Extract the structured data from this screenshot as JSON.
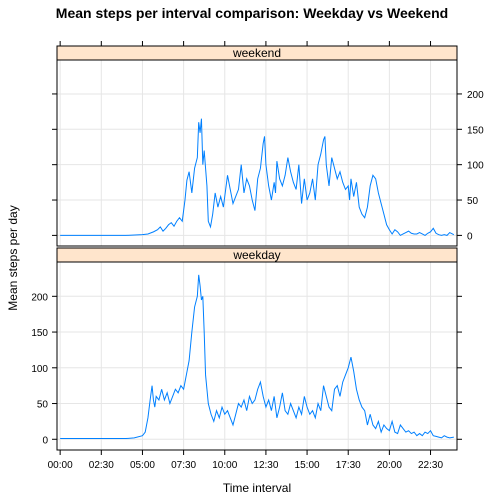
{
  "chart_data": {
    "type": "line",
    "title": "Mean steps per interval comparison: Weekday vs Weekend",
    "xlabel": "Time interval",
    "ylabel": "Mean steps per day",
    "x_ticks": [
      "00:00",
      "02:30",
      "05:00",
      "07:30",
      "10:00",
      "12:30",
      "15:00",
      "17:30",
      "20:00",
      "22:30"
    ],
    "x_range_minutes": [
      0,
      1435
    ],
    "y_ticks": [
      0,
      50,
      100,
      150,
      200
    ],
    "ylim": [
      -15,
      248
    ],
    "grid": true,
    "line_color": "#0080ff",
    "strip_color": "#ffe5cc",
    "panels": [
      {
        "name": "weekend",
        "y_axis_side": "right",
        "points": [
          [
            0,
            0
          ],
          [
            60,
            0
          ],
          [
            120,
            0
          ],
          [
            180,
            0
          ],
          [
            240,
            0
          ],
          [
            300,
            1
          ],
          [
            320,
            2
          ],
          [
            340,
            5
          ],
          [
            355,
            8
          ],
          [
            365,
            12
          ],
          [
            375,
            6
          ],
          [
            385,
            10
          ],
          [
            395,
            15
          ],
          [
            405,
            18
          ],
          [
            415,
            13
          ],
          [
            425,
            20
          ],
          [
            435,
            25
          ],
          [
            445,
            20
          ],
          [
            455,
            50
          ],
          [
            462,
            78
          ],
          [
            470,
            90
          ],
          [
            480,
            60
          ],
          [
            490,
            95
          ],
          [
            500,
            110
          ],
          [
            505,
            160
          ],
          [
            510,
            145
          ],
          [
            515,
            165
          ],
          [
            520,
            100
          ],
          [
            525,
            120
          ],
          [
            530,
            95
          ],
          [
            535,
            70
          ],
          [
            540,
            20
          ],
          [
            548,
            12
          ],
          [
            556,
            30
          ],
          [
            565,
            60
          ],
          [
            575,
            40
          ],
          [
            585,
            55
          ],
          [
            595,
            40
          ],
          [
            600,
            55
          ],
          [
            610,
            85
          ],
          [
            620,
            65
          ],
          [
            630,
            45
          ],
          [
            640,
            55
          ],
          [
            650,
            65
          ],
          [
            660,
            100
          ],
          [
            670,
            60
          ],
          [
            680,
            80
          ],
          [
            690,
            70
          ],
          [
            700,
            50
          ],
          [
            710,
            35
          ],
          [
            720,
            80
          ],
          [
            730,
            95
          ],
          [
            740,
            130
          ],
          [
            745,
            140
          ],
          [
            750,
            100
          ],
          [
            760,
            70
          ],
          [
            770,
            50
          ],
          [
            780,
            75
          ],
          [
            785,
            60
          ],
          [
            790,
            105
          ],
          [
            800,
            80
          ],
          [
            810,
            70
          ],
          [
            820,
            85
          ],
          [
            830,
            110
          ],
          [
            840,
            90
          ],
          [
            850,
            75
          ],
          [
            860,
            65
          ],
          [
            870,
            100
          ],
          [
            880,
            45
          ],
          [
            890,
            80
          ],
          [
            900,
            50
          ],
          [
            910,
            60
          ],
          [
            920,
            80
          ],
          [
            930,
            50
          ],
          [
            940,
            100
          ],
          [
            950,
            115
          ],
          [
            960,
            135
          ],
          [
            965,
            140
          ],
          [
            970,
            100
          ],
          [
            980,
            70
          ],
          [
            990,
            110
          ],
          [
            1000,
            95
          ],
          [
            1010,
            80
          ],
          [
            1020,
            90
          ],
          [
            1030,
            75
          ],
          [
            1040,
            65
          ],
          [
            1050,
            70
          ],
          [
            1055,
            50
          ],
          [
            1060,
            80
          ],
          [
            1070,
            55
          ],
          [
            1080,
            75
          ],
          [
            1090,
            40
          ],
          [
            1100,
            30
          ],
          [
            1110,
            25
          ],
          [
            1120,
            40
          ],
          [
            1130,
            70
          ],
          [
            1140,
            85
          ],
          [
            1150,
            80
          ],
          [
            1160,
            60
          ],
          [
            1170,
            45
          ],
          [
            1180,
            30
          ],
          [
            1190,
            15
          ],
          [
            1200,
            8
          ],
          [
            1210,
            2
          ],
          [
            1220,
            8
          ],
          [
            1230,
            5
          ],
          [
            1240,
            0
          ],
          [
            1250,
            2
          ],
          [
            1260,
            4
          ],
          [
            1270,
            6
          ],
          [
            1280,
            3
          ],
          [
            1290,
            2
          ],
          [
            1300,
            2
          ],
          [
            1310,
            4
          ],
          [
            1320,
            2
          ],
          [
            1330,
            0
          ],
          [
            1340,
            3
          ],
          [
            1350,
            5
          ],
          [
            1360,
            10
          ],
          [
            1370,
            3
          ],
          [
            1380,
            1
          ],
          [
            1390,
            0
          ],
          [
            1400,
            1
          ],
          [
            1410,
            0
          ],
          [
            1420,
            4
          ],
          [
            1435,
            1
          ]
        ]
      },
      {
        "name": "weekday",
        "y_axis_side": "left",
        "points": [
          [
            0,
            1
          ],
          [
            60,
            1
          ],
          [
            120,
            1
          ],
          [
            180,
            1
          ],
          [
            240,
            1
          ],
          [
            270,
            2
          ],
          [
            300,
            5
          ],
          [
            310,
            10
          ],
          [
            320,
            30
          ],
          [
            328,
            55
          ],
          [
            335,
            75
          ],
          [
            340,
            55
          ],
          [
            345,
            45
          ],
          [
            350,
            60
          ],
          [
            360,
            55
          ],
          [
            370,
            70
          ],
          [
            380,
            55
          ],
          [
            390,
            65
          ],
          [
            400,
            50
          ],
          [
            410,
            60
          ],
          [
            420,
            70
          ],
          [
            430,
            65
          ],
          [
            440,
            75
          ],
          [
            450,
            70
          ],
          [
            460,
            90
          ],
          [
            470,
            110
          ],
          [
            480,
            150
          ],
          [
            490,
            185
          ],
          [
            500,
            200
          ],
          [
            505,
            230
          ],
          [
            510,
            215
          ],
          [
            515,
            195
          ],
          [
            520,
            200
          ],
          [
            525,
            150
          ],
          [
            530,
            90
          ],
          [
            535,
            70
          ],
          [
            540,
            50
          ],
          [
            550,
            35
          ],
          [
            560,
            25
          ],
          [
            570,
            40
          ],
          [
            580,
            30
          ],
          [
            590,
            45
          ],
          [
            600,
            35
          ],
          [
            610,
            40
          ],
          [
            620,
            30
          ],
          [
            630,
            20
          ],
          [
            640,
            35
          ],
          [
            650,
            50
          ],
          [
            660,
            45
          ],
          [
            670,
            55
          ],
          [
            680,
            40
          ],
          [
            690,
            60
          ],
          [
            700,
            50
          ],
          [
            710,
            55
          ],
          [
            720,
            70
          ],
          [
            730,
            80
          ],
          [
            740,
            60
          ],
          [
            750,
            45
          ],
          [
            760,
            55
          ],
          [
            770,
            40
          ],
          [
            780,
            60
          ],
          [
            790,
            30
          ],
          [
            800,
            45
          ],
          [
            810,
            65
          ],
          [
            820,
            40
          ],
          [
            830,
            35
          ],
          [
            840,
            50
          ],
          [
            850,
            40
          ],
          [
            860,
            30
          ],
          [
            870,
            45
          ],
          [
            880,
            35
          ],
          [
            890,
            60
          ],
          [
            900,
            45
          ],
          [
            910,
            35
          ],
          [
            920,
            40
          ],
          [
            930,
            30
          ],
          [
            940,
            50
          ],
          [
            950,
            40
          ],
          [
            960,
            75
          ],
          [
            970,
            60
          ],
          [
            980,
            45
          ],
          [
            990,
            40
          ],
          [
            1000,
            70
          ],
          [
            1010,
            75
          ],
          [
            1020,
            60
          ],
          [
            1030,
            80
          ],
          [
            1040,
            90
          ],
          [
            1050,
            100
          ],
          [
            1060,
            115
          ],
          [
            1070,
            95
          ],
          [
            1080,
            70
          ],
          [
            1090,
            55
          ],
          [
            1100,
            45
          ],
          [
            1110,
            40
          ],
          [
            1120,
            20
          ],
          [
            1130,
            35
          ],
          [
            1140,
            20
          ],
          [
            1150,
            15
          ],
          [
            1160,
            25
          ],
          [
            1170,
            10
          ],
          [
            1180,
            20
          ],
          [
            1190,
            15
          ],
          [
            1200,
            12
          ],
          [
            1210,
            25
          ],
          [
            1220,
            10
          ],
          [
            1230,
            8
          ],
          [
            1240,
            20
          ],
          [
            1250,
            15
          ],
          [
            1260,
            10
          ],
          [
            1270,
            12
          ],
          [
            1280,
            8
          ],
          [
            1290,
            10
          ],
          [
            1300,
            5
          ],
          [
            1310,
            8
          ],
          [
            1320,
            5
          ],
          [
            1330,
            10
          ],
          [
            1340,
            8
          ],
          [
            1350,
            12
          ],
          [
            1360,
            5
          ],
          [
            1370,
            4
          ],
          [
            1380,
            3
          ],
          [
            1390,
            2
          ],
          [
            1400,
            5
          ],
          [
            1410,
            3
          ],
          [
            1420,
            2
          ],
          [
            1435,
            3
          ]
        ]
      }
    ]
  }
}
